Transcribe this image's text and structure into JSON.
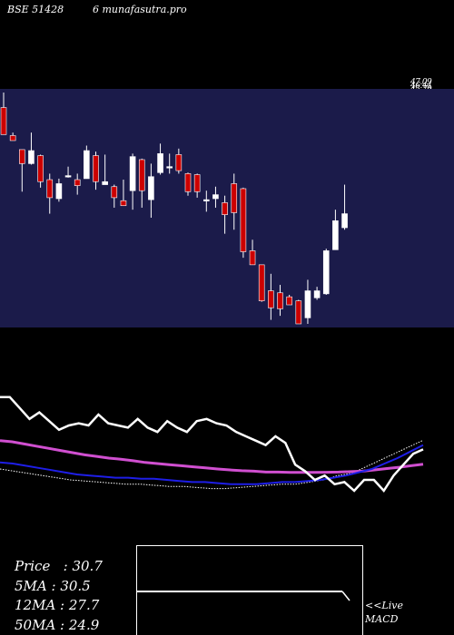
{
  "header": {
    "left": "BSE 51428",
    "right": "6  munafasutra.pro"
  },
  "chart_data": {
    "type": "candlestick",
    "price_labels": [
      "47.09",
      "46.44",
      "45.79"
    ],
    "candles": [
      {
        "o": 45.6,
        "h": 47.1,
        "l": 43.0,
        "c": 42.9
      },
      {
        "o": 42.8,
        "h": 43.1,
        "l": 42.3,
        "c": 42.3
      },
      {
        "o": 41.4,
        "h": 41.4,
        "l": 37.2,
        "c": 40.0
      },
      {
        "o": 40.0,
        "h": 43.1,
        "l": 39.9,
        "c": 41.3
      },
      {
        "o": 40.8,
        "h": 40.9,
        "l": 37.6,
        "c": 38.2
      },
      {
        "o": 38.4,
        "h": 39.0,
        "l": 35.0,
        "c": 36.6
      },
      {
        "o": 36.5,
        "h": 38.5,
        "l": 36.2,
        "c": 38.0
      },
      {
        "o": 38.8,
        "h": 39.7,
        "l": 38.6,
        "c": 38.8
      },
      {
        "o": 38.4,
        "h": 39.0,
        "l": 36.9,
        "c": 37.8
      },
      {
        "o": 38.5,
        "h": 41.8,
        "l": 38.5,
        "c": 41.3
      },
      {
        "o": 40.8,
        "h": 41.2,
        "l": 37.4,
        "c": 38.2
      },
      {
        "o": 37.9,
        "h": 40.9,
        "l": 37.9,
        "c": 38.2
      },
      {
        "o": 37.7,
        "h": 37.9,
        "l": 35.6,
        "c": 36.6
      },
      {
        "o": 36.3,
        "h": 38.4,
        "l": 35.8,
        "c": 35.8
      },
      {
        "o": 37.3,
        "h": 41.0,
        "l": 35.4,
        "c": 40.7
      },
      {
        "o": 40.4,
        "h": 40.5,
        "l": 35.6,
        "c": 37.3
      },
      {
        "o": 36.4,
        "h": 40.0,
        "l": 34.6,
        "c": 38.7
      },
      {
        "o": 39.1,
        "h": 42.0,
        "l": 38.9,
        "c": 41.0
      },
      {
        "o": 39.6,
        "h": 41.0,
        "l": 39.0,
        "c": 39.7
      },
      {
        "o": 40.9,
        "h": 41.5,
        "l": 39.0,
        "c": 39.3
      },
      {
        "o": 39.0,
        "h": 39.1,
        "l": 36.8,
        "c": 37.2
      },
      {
        "o": 38.9,
        "h": 39.0,
        "l": 36.6,
        "c": 37.2
      },
      {
        "o": 36.4,
        "h": 37.3,
        "l": 35.2,
        "c": 36.4
      },
      {
        "o": 36.5,
        "h": 37.7,
        "l": 35.6,
        "c": 36.9
      },
      {
        "o": 36.1,
        "h": 36.8,
        "l": 33.0,
        "c": 34.9
      },
      {
        "o": 38.0,
        "h": 39.0,
        "l": 33.4,
        "c": 35.1
      },
      {
        "o": 37.5,
        "h": 37.6,
        "l": 30.6,
        "c": 31.2
      },
      {
        "o": 31.3,
        "h": 32.4,
        "l": 29.9,
        "c": 29.9
      },
      {
        "o": 29.9,
        "h": 29.9,
        "l": 26.2,
        "c": 26.3
      },
      {
        "o": 27.3,
        "h": 29.0,
        "l": 24.4,
        "c": 25.6
      },
      {
        "o": 27.1,
        "h": 27.9,
        "l": 24.8,
        "c": 25.5
      },
      {
        "o": 26.7,
        "h": 26.9,
        "l": 25.9,
        "c": 25.9
      },
      {
        "o": 26.3,
        "h": 26.4,
        "l": 24.0,
        "c": 24.0
      },
      {
        "o": 24.6,
        "h": 28.4,
        "l": 24.0,
        "c": 27.3
      },
      {
        "o": 26.6,
        "h": 27.7,
        "l": 26.4,
        "c": 27.3
      },
      {
        "o": 27.0,
        "h": 31.5,
        "l": 26.9,
        "c": 31.3
      },
      {
        "o": 31.4,
        "h": 35.4,
        "l": 31.4,
        "c": 34.3
      },
      {
        "o": 33.6,
        "h": 37.9,
        "l": 33.4,
        "c": 35.0
      }
    ]
  },
  "indicators": {
    "rsi_values": [
      68,
      68,
      63,
      58,
      61,
      57,
      53,
      55,
      56,
      55,
      60,
      56,
      55,
      54,
      58,
      54,
      52,
      57,
      54,
      52,
      57,
      58,
      56,
      55,
      52,
      50,
      48,
      46,
      50,
      47,
      37,
      34,
      30,
      32,
      28,
      29,
      25,
      30,
      30,
      25,
      32,
      37,
      42,
      44
    ],
    "ma_line_values": [
      48,
      47.5,
      46.5,
      45.5,
      44.5,
      43.5,
      42.5,
      41.5,
      40.8,
      40,
      39.5,
      38.8,
      38,
      37.5,
      37,
      36.5,
      36,
      35.5,
      35,
      34.6,
      34.2,
      34,
      33.6,
      33.6,
      33.4,
      33.4,
      33.4,
      33.5,
      33.6,
      33.8,
      34,
      34.6,
      35.2,
      35.8,
      36.5,
      37.2
    ],
    "blue_line_values": [
      38,
      37.5,
      36.5,
      35.5,
      34.5,
      33.5,
      32.5,
      32,
      31.5,
      31,
      31,
      30.5,
      30.5,
      30,
      29.5,
      29,
      29,
      28.5,
      28,
      28,
      28,
      28.5,
      29,
      29,
      29.5,
      30,
      31,
      32,
      33.5,
      35,
      37.5,
      40,
      43,
      46
    ],
    "white_dotted_values": [
      35,
      34,
      33,
      32,
      31,
      30,
      29.5,
      29,
      28.5,
      28,
      28,
      27.5,
      27,
      27,
      26.5,
      26,
      26,
      26.5,
      27,
      27.5,
      28,
      28,
      29,
      30,
      32,
      33,
      36,
      39,
      42,
      45,
      48
    ]
  },
  "info": {
    "price": "Price   : 30.7",
    "ma5": "5MA : 30.5",
    "ma12": "12MA : 27.7",
    "ma50": "50MA : 24.9"
  },
  "macd": {
    "label_line1": "<<Live",
    "label_line2": "MACD"
  },
  "colors": {
    "background": "#000000",
    "panel": "#1b1b4a",
    "bull": "#ffffff",
    "bear": "#cc0000",
    "ma_magenta": "#d04fd0",
    "ma_blue": "#1e1ee6"
  }
}
